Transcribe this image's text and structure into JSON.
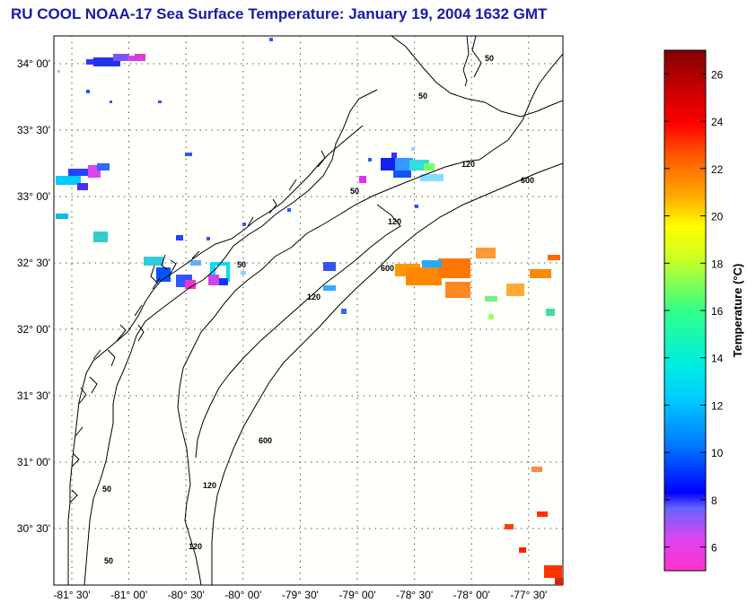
{
  "title": "RU COOL  NOAA-17  Sea Surface Temperature:  January 19, 2004 1632 GMT",
  "map": {
    "lon_ticks": [
      "-81° 30'",
      "-81° 00'",
      "-80° 30'",
      "-80° 00'",
      "-79° 30'",
      "-79° 00'",
      "-78° 30'",
      "-78° 00'",
      "-77° 30'"
    ],
    "lat_ticks": [
      "34° 00'",
      "33° 30'",
      "33° 00'",
      "32° 30'",
      "32° 00'",
      "31° 30'",
      "31° 00'",
      "30° 30'"
    ],
    "contour_labels": [
      "50",
      "50",
      "50",
      "50",
      "50",
      "50",
      "120",
      "120",
      "120",
      "120",
      "120",
      "600",
      "600",
      "600"
    ]
  },
  "colorbar": {
    "label": "Temperature (°C)",
    "ticks": [
      "26",
      "24",
      "22",
      "20",
      "18",
      "16",
      "14",
      "12",
      "10",
      "8",
      "6"
    ],
    "range": [
      5,
      27
    ]
  },
  "colors": {
    "title": "#1a1aa6",
    "coast": "#000000",
    "grid": "#555555"
  }
}
